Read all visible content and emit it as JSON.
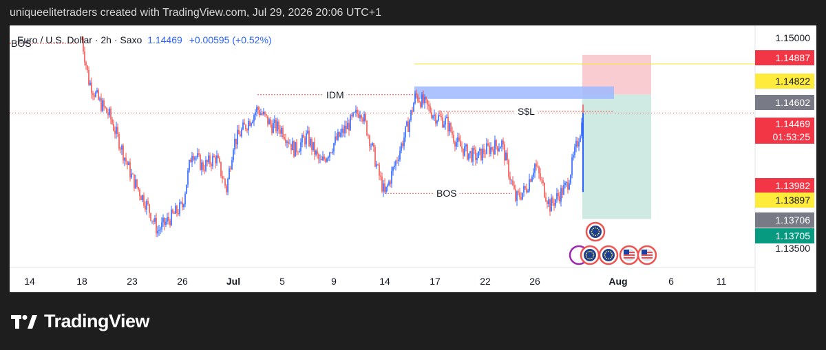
{
  "watermark": "uniqueelitetraders created with TradingView.com, Jul 29, 2026 20:06 UTC+1",
  "brand": {
    "name": "TradingView",
    "logo_icon": "tradingview-logo-icon"
  },
  "symbol": {
    "name": "Euro / U.S. Dollar · 2h · Saxo",
    "last": "1.14469",
    "change": "+0.00595 (+0.52%)"
  },
  "colors": {
    "up": "#2962ff",
    "down": "#ef5350",
    "supply": "#f7c6cc",
    "demand": "#cbe9e1",
    "idm_zone": "#9fb8ff",
    "level_line": "#f6e84c"
  },
  "price_labels": [
    {
      "text": "1.15000",
      "bg": "none",
      "color": "#131722"
    },
    {
      "text": "1.14887",
      "bg": "#f23645",
      "color": "#ffffff"
    },
    {
      "text": "1.14822",
      "bg": "#ffeb3b",
      "color": "#131722"
    },
    {
      "text": "1.14602",
      "bg": "#787b86",
      "color": "#ffffff"
    },
    {
      "text": "1.14469",
      "sub": "01:53:25",
      "bg": "#f23645",
      "color": "#ffffff"
    },
    {
      "text": "1.13982",
      "bg": "#f23645",
      "color": "#ffffff"
    },
    {
      "text": "1.13897",
      "bg": "#ffeb3b",
      "color": "#131722"
    },
    {
      "text": "1.13706",
      "bg": "#787b86",
      "color": "#ffffff"
    },
    {
      "text": "1.13705",
      "bg": "#089981",
      "color": "#ffffff"
    },
    {
      "text": "1.13500",
      "bg": "none",
      "color": "#131722"
    }
  ],
  "annotations": [
    "BOS",
    "IDM",
    "S$L",
    "BOS"
  ],
  "event_icons": [
    "eu-flag-icon",
    "eu-flag-icon",
    "eu-flag-icon",
    "us-flag-icon",
    "us-flag-icon"
  ],
  "chart_data": {
    "type": "candlestick",
    "symbol": "EURUSD",
    "timeframe": "2h",
    "x_ticks": [
      "14",
      "18",
      "23",
      "26",
      "Jul",
      "5",
      "9",
      "14",
      "17",
      "22",
      "26",
      "Aug",
      "6",
      "11"
    ],
    "y_ticks": [
      "1.15000",
      "1.13500"
    ],
    "trend_closes": [
      {
        "x": "18",
        "y": 1.15
      },
      {
        "x": "19",
        "y": 1.147
      },
      {
        "x": "20",
        "y": 1.1455
      },
      {
        "x": "21",
        "y": 1.1445
      },
      {
        "x": "22",
        "y": 1.1425
      },
      {
        "x": "23",
        "y": 1.14
      },
      {
        "x": "24",
        "y": 1.138
      },
      {
        "x": "25",
        "y": 1.1362
      },
      {
        "x": "26",
        "y": 1.138
      },
      {
        "x": "27",
        "y": 1.142
      },
      {
        "x": "28",
        "y": 1.1408
      },
      {
        "x": "29",
        "y": 1.1415
      },
      {
        "x": "30",
        "y": 1.1392
      },
      {
        "x": "Jul",
        "y": 1.1425
      },
      {
        "x": "3",
        "y": 1.145
      },
      {
        "x": "4",
        "y": 1.1438
      },
      {
        "x": "5",
        "y": 1.1435
      },
      {
        "x": "6",
        "y": 1.142
      },
      {
        "x": "7",
        "y": 1.143
      },
      {
        "x": "8",
        "y": 1.141
      },
      {
        "x": "9",
        "y": 1.1425
      },
      {
        "x": "10",
        "y": 1.144
      },
      {
        "x": "11",
        "y": 1.145
      },
      {
        "x": "12",
        "y": 1.1425
      },
      {
        "x": "13",
        "y": 1.1405
      },
      {
        "x": "14",
        "y": 1.1388
      },
      {
        "x": "15",
        "y": 1.144
      },
      {
        "x": "16",
        "y": 1.146
      },
      {
        "x": "17",
        "y": 1.1445
      },
      {
        "x": "18",
        "y": 1.144
      },
      {
        "x": "19",
        "y": 1.1425
      },
      {
        "x": "20",
        "y": 1.1418
      },
      {
        "x": "21",
        "y": 1.1415
      },
      {
        "x": "22",
        "y": 1.142
      },
      {
        "x": "23",
        "y": 1.1425
      },
      {
        "x": "24",
        "y": 1.1385
      },
      {
        "x": "25",
        "y": 1.1392
      },
      {
        "x": "26",
        "y": 1.141
      },
      {
        "x": "27",
        "y": 1.138
      },
      {
        "x": "28",
        "y": 1.1395
      },
      {
        "x": "29",
        "y": 1.1447
      }
    ],
    "levels": [
      {
        "label": "BOS",
        "y": 1.1497
      },
      {
        "label": "IDM",
        "y": 1.146
      },
      {
        "label": "S$L",
        "y": 1.1448
      },
      {
        "label": "BOS",
        "y": 1.1389
      }
    ],
    "zones": [
      {
        "name": "idm_zone",
        "y_from": 1.1457,
        "y_to": 1.1466
      },
      {
        "name": "stop_zone",
        "y_from": 1.14602,
        "y_to": 1.14887
      },
      {
        "name": "target_zone",
        "y_from": 1.13706,
        "y_to": 1.14602
      }
    ],
    "last_price": 1.14469,
    "grid": false
  }
}
